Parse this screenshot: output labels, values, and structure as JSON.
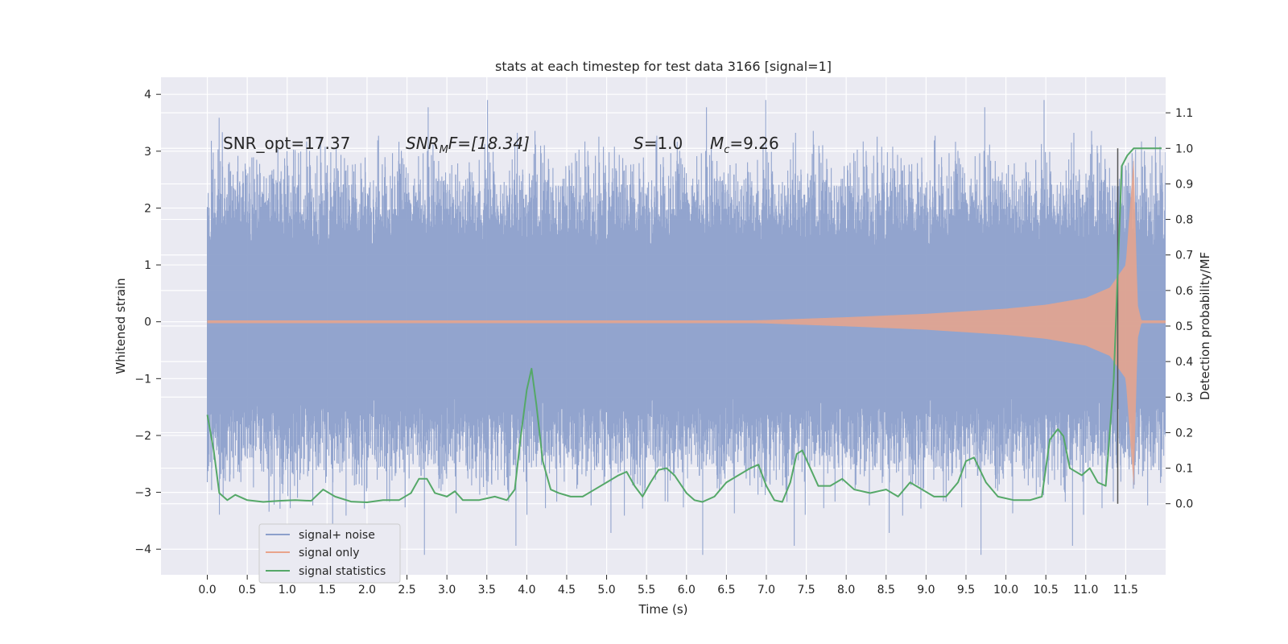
{
  "chart_data": {
    "type": "line",
    "title": "stats at each timestep for test data 3166 [signal=1]",
    "xlabel": "Time (s)",
    "ylabel_left": "Whitened strain",
    "ylabel_right": "Detection probability/MF",
    "xlim": [
      -0.58,
      12.0
    ],
    "ylim_left": [
      -4.45,
      4.3
    ],
    "ylim_right": [
      -0.2,
      1.2
    ],
    "x_ticks": [
      "0.0",
      "0.5",
      "1.0",
      "1.5",
      "2.0",
      "2.5",
      "3.0",
      "3.5",
      "4.0",
      "4.5",
      "5.0",
      "5.5",
      "6.0",
      "6.5",
      "7.0",
      "7.5",
      "8.0",
      "8.5",
      "9.0",
      "9.5",
      "10.0",
      "10.5",
      "11.0",
      "11.5"
    ],
    "y_ticks_left": [
      "−4",
      "−3",
      "−2",
      "−1",
      "0",
      "1",
      "2",
      "3",
      "4"
    ],
    "y_ticks_right": [
      "0.0",
      "0.1",
      "0.2",
      "0.3",
      "0.4",
      "0.5",
      "0.6",
      "0.7",
      "0.8",
      "0.9",
      "1.0",
      "1.1"
    ],
    "grid": true,
    "legend_position": "lower-left",
    "annotations": {
      "snr_opt": "SNR_opt=17.37",
      "snr_mf_main": "SNR",
      "snr_mf_sub": "M",
      "snr_mf_rest": "F=[18.34]",
      "s_main": "S",
      "s_rest": "=1.0",
      "mc_main": "M",
      "mc_sub": "c",
      "mc_rest": "=9.26"
    },
    "merger_marker_x": 11.4,
    "series": [
      {
        "name": "signal+ noise",
        "color": "#8da0cb",
        "axis": "left",
        "x_range": [
          0.0,
          12.0
        ],
        "envelope_core": [
          -1.3,
          1.3
        ],
        "peak_min": -4.1,
        "peak_max": 3.9
      },
      {
        "name": "signal only",
        "color": "#e9a48b",
        "axis": "left",
        "x_range": [
          0.0,
          12.0
        ],
        "envelope_x": [
          0.0,
          6.0,
          7.0,
          8.0,
          9.0,
          10.0,
          10.5,
          11.0,
          11.3,
          11.5,
          11.6,
          11.65,
          11.7,
          12.0
        ],
        "envelope_amp": [
          0.0,
          0.0,
          0.03,
          0.08,
          0.14,
          0.23,
          0.3,
          0.42,
          0.6,
          1.0,
          2.9,
          0.3,
          0.0,
          0.0
        ]
      },
      {
        "name": "signal statistics",
        "color": "#55a868",
        "axis": "right",
        "x": [
          0.0,
          0.08,
          0.15,
          0.25,
          0.35,
          0.5,
          0.7,
          0.9,
          1.1,
          1.3,
          1.45,
          1.6,
          1.8,
          2.0,
          2.2,
          2.4,
          2.55,
          2.65,
          2.75,
          2.85,
          3.0,
          3.1,
          3.2,
          3.4,
          3.6,
          3.75,
          3.85,
          3.92,
          4.0,
          4.06,
          4.12,
          4.2,
          4.3,
          4.4,
          4.55,
          4.7,
          4.85,
          5.0,
          5.15,
          5.25,
          5.35,
          5.45,
          5.55,
          5.65,
          5.75,
          5.85,
          6.0,
          6.1,
          6.2,
          6.35,
          6.5,
          6.65,
          6.8,
          6.9,
          7.0,
          7.1,
          7.2,
          7.3,
          7.38,
          7.45,
          7.55,
          7.65,
          7.8,
          7.95,
          8.1,
          8.3,
          8.5,
          8.65,
          8.8,
          8.95,
          9.1,
          9.25,
          9.4,
          9.5,
          9.6,
          9.75,
          9.9,
          10.1,
          10.3,
          10.45,
          10.55,
          10.65,
          10.72,
          10.8,
          10.95,
          11.05,
          11.15,
          11.25,
          11.35,
          11.45,
          11.52,
          11.6,
          11.7,
          11.8,
          11.95
        ],
        "values": [
          0.25,
          0.15,
          0.03,
          0.01,
          0.025,
          0.01,
          0.005,
          0.008,
          0.01,
          0.008,
          0.04,
          0.02,
          0.006,
          0.004,
          0.01,
          0.01,
          0.03,
          0.07,
          0.07,
          0.03,
          0.02,
          0.035,
          0.01,
          0.01,
          0.02,
          0.01,
          0.04,
          0.18,
          0.32,
          0.38,
          0.28,
          0.12,
          0.04,
          0.03,
          0.02,
          0.02,
          0.04,
          0.06,
          0.08,
          0.09,
          0.05,
          0.02,
          0.06,
          0.095,
          0.1,
          0.08,
          0.03,
          0.01,
          0.005,
          0.02,
          0.06,
          0.08,
          0.1,
          0.11,
          0.05,
          0.01,
          0.005,
          0.06,
          0.14,
          0.15,
          0.1,
          0.05,
          0.05,
          0.07,
          0.04,
          0.03,
          0.04,
          0.02,
          0.06,
          0.04,
          0.02,
          0.02,
          0.06,
          0.12,
          0.13,
          0.06,
          0.02,
          0.01,
          0.01,
          0.02,
          0.18,
          0.21,
          0.19,
          0.1,
          0.08,
          0.1,
          0.06,
          0.05,
          0.35,
          0.95,
          0.98,
          1.0,
          1.0,
          1.0,
          1.0
        ]
      }
    ]
  }
}
